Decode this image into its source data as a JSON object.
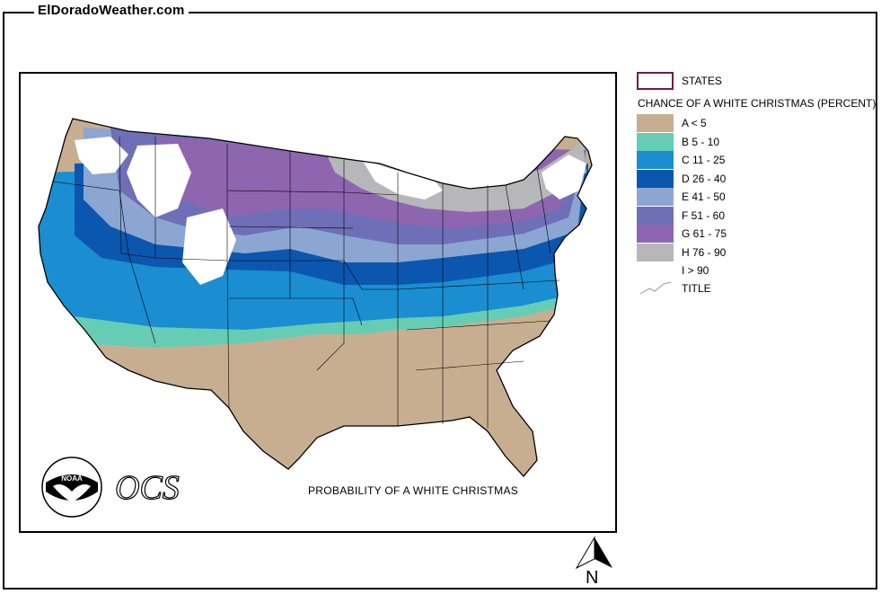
{
  "site": {
    "title": "ElDoradoWeather.com"
  },
  "map": {
    "footer_title": "PROBABILITY OF A WHITE CHRISTMAS",
    "logos": {
      "noaa": "NOAA",
      "ocs": "OCS"
    }
  },
  "legend": {
    "states_label": "STATES",
    "heading": "CHANCE OF A WHITE CHRISTMAS (PERCENT)",
    "items": [
      {
        "label": "A < 5",
        "color": "#C8AE91"
      },
      {
        "label": "B 5 - 10",
        "color": "#66CDB4"
      },
      {
        "label": "C 11 - 25",
        "color": "#1A8ED1"
      },
      {
        "label": "D 26 - 40",
        "color": "#0B57AF"
      },
      {
        "label": "E 41 - 50",
        "color": "#8CA6D2"
      },
      {
        "label": "F 51 - 60",
        "color": "#6E6FB7"
      },
      {
        "label": "G 61 - 75",
        "color": "#8E66B0"
      },
      {
        "label": "H 76 - 90",
        "color": "#B7B7BA"
      },
      {
        "label": "I > 90",
        "color": "#FFFFFF"
      }
    ],
    "title_label": "TITLE"
  },
  "north_arrow": {
    "letter": "N"
  }
}
